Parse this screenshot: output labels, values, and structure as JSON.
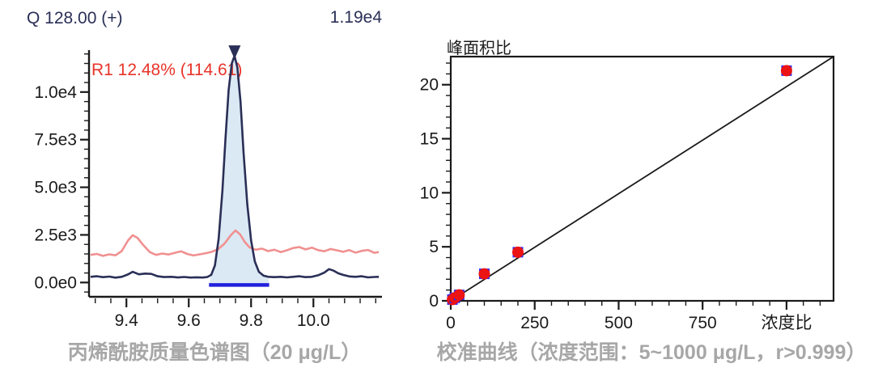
{
  "colors": {
    "navy_trace": "#2a2f57",
    "pink_trace": "#f19090",
    "peak_fill": "#dbe9f4",
    "integration_baseline_blue": "#2121dd",
    "annotation_red": "#e8342a",
    "axis_black": "#1a1a1a",
    "marker_square_blue": "#2b2bf5",
    "marker_circle_red": "#ec1313",
    "caption_gray": "#a7a7a7"
  },
  "chart_data": [
    {
      "id": "acrylamide-chromatogram",
      "type": "line",
      "title": "Q 128.00 (+)",
      "max_intensity_label": "1.19e4",
      "peak_annotation": "R1 12.48% (114.61)",
      "caption": "丙烯酰胺质量色谱图（20 μg/L）",
      "x_axis": {
        "range": [
          9.28,
          10.22
        ],
        "major_ticks": [
          9.4,
          9.6,
          9.8,
          10.0
        ],
        "tick_labels": [
          "9.4",
          "9.6",
          "9.8",
          "10.0"
        ],
        "minor_step": 0.05
      },
      "y_axis": {
        "range": [
          -750,
          12200
        ],
        "major_ticks": [
          0,
          2500,
          5000,
          7500,
          10000
        ],
        "tick_labels": [
          "0.0e0",
          "2.5e3",
          "5.0e3",
          "7.5e3",
          "1.0e4"
        ],
        "minor_step": 500
      },
      "peak": {
        "apex_x": 9.747,
        "apex_intensity": 11900,
        "integration_start_x": 9.665,
        "integration_end_x": 9.858,
        "baseline_intensity": -130
      },
      "series": [
        {
          "name": "quantifier-trace",
          "color": "#2a2f57",
          "points": [
            [
              9.285,
              300
            ],
            [
              9.305,
              330
            ],
            [
              9.325,
              280
            ],
            [
              9.345,
              310
            ],
            [
              9.365,
              255
            ],
            [
              9.385,
              300
            ],
            [
              9.405,
              420
            ],
            [
              9.42,
              560
            ],
            [
              9.44,
              430
            ],
            [
              9.46,
              470
            ],
            [
              9.48,
              450
            ],
            [
              9.5,
              330
            ],
            [
              9.52,
              285
            ],
            [
              9.545,
              300
            ],
            [
              9.565,
              265
            ],
            [
              9.585,
              290
            ],
            [
              9.605,
              260
            ],
            [
              9.625,
              275
            ],
            [
              9.645,
              260
            ],
            [
              9.66,
              290
            ],
            [
              9.672,
              400
            ],
            [
              9.684,
              900
            ],
            [
              9.696,
              2300
            ],
            [
              9.708,
              4800
            ],
            [
              9.718,
              7600
            ],
            [
              9.728,
              10100
            ],
            [
              9.738,
              11500
            ],
            [
              9.747,
              11900
            ],
            [
              9.756,
              11300
            ],
            [
              9.766,
              9500
            ],
            [
              9.776,
              6800
            ],
            [
              9.788,
              4100
            ],
            [
              9.8,
              2200
            ],
            [
              9.812,
              1100
            ],
            [
              9.825,
              560
            ],
            [
              9.84,
              360
            ],
            [
              9.855,
              300
            ],
            [
              9.875,
              280
            ],
            [
              9.895,
              300
            ],
            [
              9.915,
              270
            ],
            [
              9.935,
              300
            ],
            [
              9.955,
              330
            ],
            [
              9.975,
              280
            ],
            [
              9.995,
              300
            ],
            [
              10.015,
              380
            ],
            [
              10.035,
              520
            ],
            [
              10.05,
              700
            ],
            [
              10.065,
              620
            ],
            [
              10.08,
              480
            ],
            [
              10.095,
              400
            ],
            [
              10.115,
              320
            ],
            [
              10.135,
              300
            ],
            [
              10.155,
              330
            ],
            [
              10.175,
              270
            ],
            [
              10.195,
              290
            ],
            [
              10.21,
              300
            ]
          ]
        },
        {
          "name": "qualifier-trace",
          "color": "#f19090",
          "points": [
            [
              9.285,
              1450
            ],
            [
              9.305,
              1500
            ],
            [
              9.325,
              1400
            ],
            [
              9.345,
              1480
            ],
            [
              9.365,
              1430
            ],
            [
              9.385,
              1650
            ],
            [
              9.405,
              2200
            ],
            [
              9.42,
              2480
            ],
            [
              9.435,
              2350
            ],
            [
              9.455,
              1950
            ],
            [
              9.475,
              1600
            ],
            [
              9.495,
              1450
            ],
            [
              9.515,
              1520
            ],
            [
              9.535,
              1470
            ],
            [
              9.555,
              1560
            ],
            [
              9.575,
              1640
            ],
            [
              9.595,
              1500
            ],
            [
              9.615,
              1420
            ],
            [
              9.635,
              1480
            ],
            [
              9.655,
              1540
            ],
            [
              9.675,
              1620
            ],
            [
              9.695,
              1760
            ],
            [
              9.715,
              2050
            ],
            [
              9.735,
              2480
            ],
            [
              9.75,
              2730
            ],
            [
              9.765,
              2520
            ],
            [
              9.78,
              2120
            ],
            [
              9.795,
              1850
            ],
            [
              9.815,
              1720
            ],
            [
              9.835,
              1780
            ],
            [
              9.855,
              1650
            ],
            [
              9.875,
              1720
            ],
            [
              9.895,
              1600
            ],
            [
              9.915,
              1690
            ],
            [
              9.935,
              1810
            ],
            [
              9.955,
              1860
            ],
            [
              9.975,
              1740
            ],
            [
              9.995,
              1830
            ],
            [
              10.015,
              1700
            ],
            [
              10.035,
              1640
            ],
            [
              10.055,
              1760
            ],
            [
              10.075,
              1690
            ],
            [
              10.095,
              1610
            ],
            [
              10.115,
              1700
            ],
            [
              10.135,
              1570
            ],
            [
              10.155,
              1660
            ],
            [
              10.175,
              1710
            ],
            [
              10.195,
              1560
            ],
            [
              10.21,
              1600
            ]
          ]
        }
      ]
    },
    {
      "id": "calibration-curve",
      "type": "scatter",
      "y_axis_title": "峰面积比",
      "x_axis_title": "浓度比",
      "caption": "校准曲线（浓度范围：5~1000 μg/L，r>0.999）",
      "x_axis": {
        "range": [
          0,
          1140
        ],
        "major_ticks": [
          0,
          250,
          500,
          750,
          1000
        ],
        "tick_labels": [
          "0",
          "250",
          "500",
          "750",
          ""
        ],
        "minor_step": 50
      },
      "y_axis": {
        "range": [
          0,
          22.6
        ],
        "major_ticks": [
          0,
          5,
          10,
          15,
          20
        ],
        "tick_labels": [
          "0",
          "5",
          "10",
          "15",
          "20"
        ],
        "minor_step": 1
      },
      "points": [
        [
          5,
          0.12
        ],
        [
          12,
          0.28
        ],
        [
          25,
          0.55
        ],
        [
          100,
          2.5
        ],
        [
          200,
          4.5
        ],
        [
          1000,
          21.3
        ]
      ],
      "fit_line": {
        "x1": 0,
        "y1": 0,
        "x2": 1140,
        "y2": 22.6
      }
    }
  ]
}
